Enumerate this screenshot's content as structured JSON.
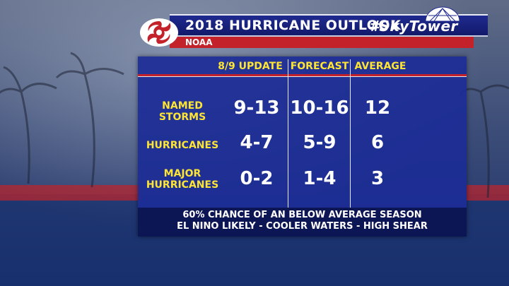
{
  "header": {
    "title": "2018 HURRICANE OUTLOOK",
    "hashtag": "#SkyTower",
    "source": "NOAA"
  },
  "table": {
    "columns": [
      "8/9 UPDATE",
      "FORECAST",
      "AVERAGE"
    ],
    "rows": [
      {
        "label_line1": "NAMED",
        "label_line2": "STORMS",
        "update": "9-13",
        "forecast": "10-16",
        "average": "12"
      },
      {
        "label": "HURRICANES",
        "update": "4-7",
        "forecast": "5-9",
        "average": "6"
      },
      {
        "label_line1": "MAJOR",
        "label_line2": "HURRICANES",
        "update": "0-2",
        "forecast": "1-4",
        "average": "3"
      }
    ]
  },
  "footer": {
    "line1": "60% CHANCE OF AN BELOW AVERAGE SEASON",
    "line2": "EL NINO LIKELY - COOLER WATERS - HIGH SHEAR"
  },
  "colors": {
    "accent_yellow": "#ffe533",
    "brand_red": "#c4222a",
    "panel_blue": "#1c2c96"
  },
  "icons": [
    "hurricane-logo-icon",
    "skytower-dome-icon"
  ]
}
